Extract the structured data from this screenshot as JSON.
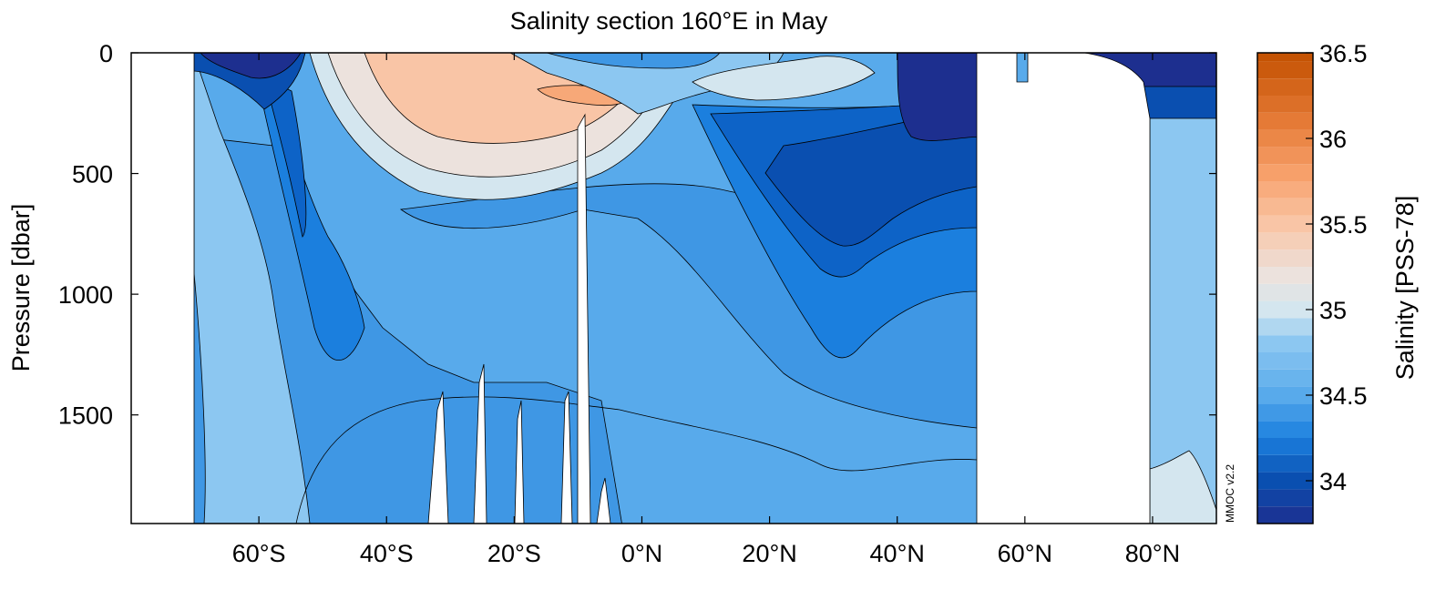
{
  "chart_data": {
    "type": "heatmap",
    "title": "Salinity section 160°E in May",
    "xlabel": "",
    "ylabel": "Pressure [dbar]",
    "colorbar_label": "Salinity [PSS-78]",
    "watermark": "MMOC v2.2",
    "xlim": [
      -80,
      90
    ],
    "ylim": [
      1950,
      0
    ],
    "x_ticks": [
      {
        "value": -60,
        "label": "60°S"
      },
      {
        "value": -40,
        "label": "40°S"
      },
      {
        "value": -20,
        "label": "20°S"
      },
      {
        "value": 0,
        "label": "0°N"
      },
      {
        "value": 20,
        "label": "20°N"
      },
      {
        "value": 40,
        "label": "40°N"
      },
      {
        "value": 60,
        "label": "60°N"
      },
      {
        "value": 80,
        "label": "80°N"
      }
    ],
    "y_ticks": [
      {
        "value": 0,
        "label": "0"
      },
      {
        "value": 500,
        "label": "500"
      },
      {
        "value": 1000,
        "label": "1000"
      },
      {
        "value": 1500,
        "label": "1500"
      }
    ],
    "colorbar": {
      "min": 33.75,
      "max": 36.5,
      "step": 0.1,
      "ticks": [
        {
          "value": 34,
          "label": "34"
        },
        {
          "value": 34.5,
          "label": "34.5"
        },
        {
          "value": 35,
          "label": "35"
        },
        {
          "value": 35.5,
          "label": "35.5"
        },
        {
          "value": 36,
          "label": "36"
        },
        {
          "value": 36.5,
          "label": "36.5"
        }
      ],
      "stops": [
        {
          "value": 33.75,
          "color": "#1d2f8f"
        },
        {
          "value": 34.0,
          "color": "#0a4fb0"
        },
        {
          "value": 34.25,
          "color": "#1b7fde"
        },
        {
          "value": 34.5,
          "color": "#58aaeb"
        },
        {
          "value": 34.8,
          "color": "#8cc7f1"
        },
        {
          "value": 35.0,
          "color": "#d4e6ef"
        },
        {
          "value": 35.2,
          "color": "#ece2dd"
        },
        {
          "value": 35.5,
          "color": "#f9c5a6"
        },
        {
          "value": 35.8,
          "color": "#f7a06a"
        },
        {
          "value": 36.1,
          "color": "#e57a36"
        },
        {
          "value": 36.5,
          "color": "#c35000"
        }
      ]
    },
    "colors": {
      "frame": "#000000",
      "land": "#ffffff",
      "background": "#ffffff"
    }
  }
}
